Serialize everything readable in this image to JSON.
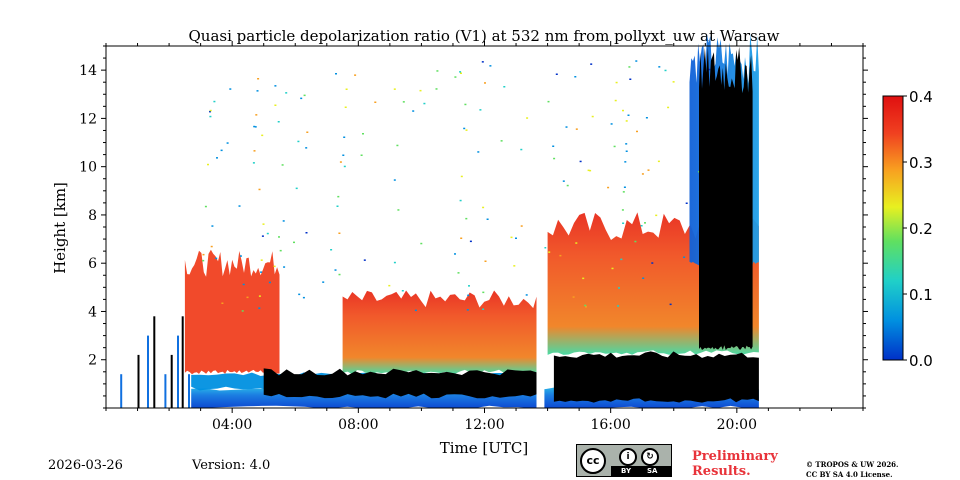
{
  "chart_data": {
    "type": "heatmap",
    "title": "Quasi particle depolarization ratio (V1) at 532 nm from pollyxt_uw at Warsaw",
    "xlabel": "Time [UTC]",
    "ylabel": "Height [km]",
    "x_range_hours": [
      0,
      24
    ],
    "ylim": [
      0,
      15
    ],
    "x_ticks": [
      {
        "value": 4,
        "label": "04:00"
      },
      {
        "value": 8,
        "label": "08:00"
      },
      {
        "value": 12,
        "label": "12:00"
      },
      {
        "value": 16,
        "label": "16:00"
      },
      {
        "value": 20,
        "label": "20:00"
      }
    ],
    "y_ticks": [
      2,
      4,
      6,
      8,
      10,
      12,
      14
    ],
    "colorbar": {
      "range": [
        0.0,
        0.4
      ],
      "ticks": [
        "0.0",
        "0.1",
        "0.2",
        "0.3",
        "0.4"
      ],
      "colormap": [
        "#0030c8",
        "#0090e0",
        "#20d0c8",
        "#60e060",
        "#e8f020",
        "#f8a020",
        "#f04020",
        "#e01010"
      ]
    },
    "regions": [
      {
        "name": "boundary-layer-low-depol",
        "t_start": 2.7,
        "t_end": 20.7,
        "h_bottom": 0,
        "h_top": 0.8,
        "value": 0.02
      },
      {
        "name": "residual-layer",
        "t_start": 2.7,
        "t_end": 13.7,
        "h_bottom": 0.8,
        "h_top": 1.4,
        "value": 0.05
      },
      {
        "name": "dust-layer-morning",
        "t_start": 7.5,
        "t_end": 13.7,
        "h_bottom": 1.5,
        "h_top": 4.5,
        "value": 0.33
      },
      {
        "name": "dust-layer-afternoon",
        "t_start": 14.0,
        "t_end": 20.7,
        "h_bottom": 2.3,
        "h_top": 7.5,
        "value": 0.3
      },
      {
        "name": "early-plumes",
        "t_start": 2.5,
        "t_end": 5.5,
        "h_bottom": 1.5,
        "h_top": 6.0,
        "value": 0.32
      },
      {
        "name": "cirrus-late",
        "t_start": 18.5,
        "t_end": 20.7,
        "h_bottom": 6.0,
        "h_top": 14.5,
        "value": 0.1
      }
    ],
    "no_data_gaps": [
      {
        "t_start": 13.65,
        "t_end": 13.9
      }
    ],
    "saturated_regions_black": [
      {
        "t_start": 5.0,
        "t_end": 13.7,
        "h_bottom": 0.5,
        "h_top": 1.5
      },
      {
        "t_start": 14.2,
        "t_end": 20.7,
        "h_bottom": 0.3,
        "h_top": 2.2
      },
      {
        "t_start": 18.8,
        "t_end": 20.5,
        "h_bottom": 2.5,
        "h_top": 14.0
      }
    ]
  },
  "footer": {
    "date": "2026-03-26",
    "version": "Version: 4.0",
    "preliminary_line1": "Preliminary",
    "preliminary_line2": "Results.",
    "copyright_line1": "© TROPOS & UW 2026.",
    "copyright_line2": "CC BY SA 4.0 License."
  },
  "license_badge": {
    "cc_glyph": "cc",
    "by_label": "BY",
    "sa_label": "SA"
  }
}
